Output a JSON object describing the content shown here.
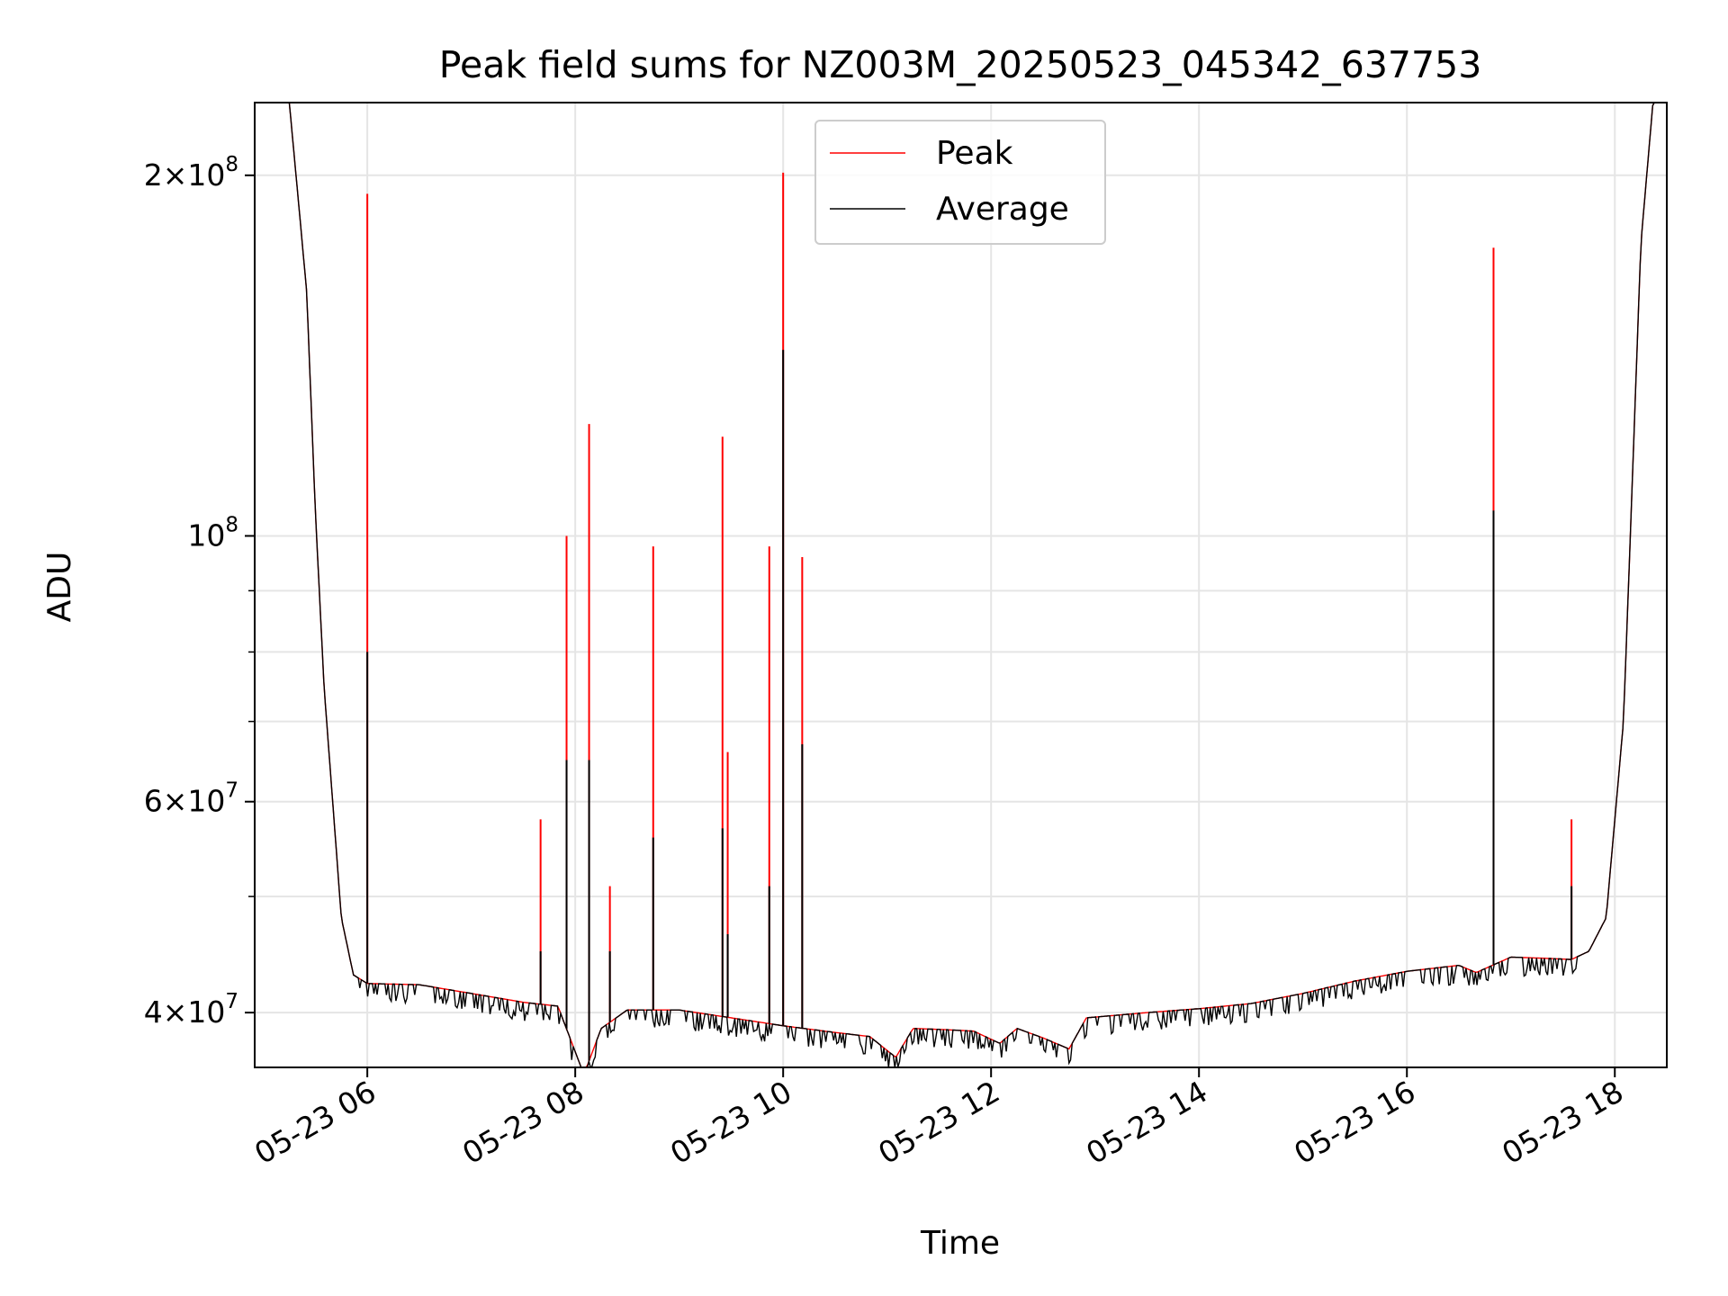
{
  "chart_data": {
    "type": "line",
    "title": "Peak field sums for NZ003M_20250523_045342_637753",
    "xlabel": "Time",
    "ylabel": "ADU",
    "y_scale": "log",
    "grid": true,
    "legend_position": "top-center",
    "xlim": [
      "05-23 04:55",
      "05-23 18:30"
    ],
    "ylim": [
      36000000,
      230000000
    ],
    "x_ticks": [
      "05-23 06",
      "05-23 08",
      "05-23 10",
      "05-23 12",
      "05-23 14",
      "05-23 16",
      "05-23 18"
    ],
    "y_ticks": [
      {
        "value": 40000000,
        "base": "4×10",
        "exp": "7"
      },
      {
        "value": 60000000,
        "base": "6×10",
        "exp": "7"
      },
      {
        "value": 100000000,
        "base": "10",
        "exp": "8"
      },
      {
        "value": 200000000,
        "base": "2×10",
        "exp": "8"
      }
    ],
    "y_minor_ticks": [
      50000000,
      70000000,
      80000000,
      90000000
    ],
    "baseline": {
      "x": [
        "05-23 04:55",
        "05-23 05:15",
        "05-23 05:25",
        "05-23 05:30",
        "05-23 05:35",
        "05-23 05:45",
        "05-23 05:52",
        "05-23 06:00",
        "05-23 06:30",
        "05-23 07:00",
        "05-23 07:30",
        "05-23 07:50",
        "05-23 08:05",
        "05-23 08:15",
        "05-23 08:30",
        "05-23 09:00",
        "05-23 09:30",
        "05-23 10:00",
        "05-23 10:30",
        "05-23 10:50",
        "05-23 11:05",
        "05-23 11:15",
        "05-23 11:35",
        "05-23 11:50",
        "05-23 12:05",
        "05-23 12:15",
        "05-23 12:30",
        "05-23 12:45",
        "05-23 12:55",
        "05-23 13:30",
        "05-23 14:00",
        "05-23 14:30",
        "05-23 15:00",
        "05-23 15:30",
        "05-23 16:00",
        "05-23 16:30",
        "05-23 16:40",
        "05-23 17:00",
        "05-23 17:20",
        "05-23 17:35",
        "05-23 17:45",
        "05-23 17:55",
        "05-23 18:05",
        "05-23 18:10",
        "05-23 18:15",
        "05-23 18:22",
        "05-23 18:30"
      ],
      "values": [
        230000000,
        230000000,
        160000000,
        105000000,
        75000000,
        48000000,
        43000000,
        42300000,
        42200000,
        41500000,
        40800000,
        40500000,
        35500000,
        38800000,
        40200000,
        40200000,
        39600000,
        39000000,
        38500000,
        38200000,
        36700000,
        38800000,
        38700000,
        38600000,
        37700000,
        38800000,
        38100000,
        37300000,
        39600000,
        40000000,
        40300000,
        40700000,
        41500000,
        42500000,
        43300000,
        43800000,
        43200000,
        44500000,
        44400000,
        44300000,
        45000000,
        48000000,
        70000000,
        110000000,
        175000000,
        230000000,
        230000000
      ]
    },
    "series": [
      {
        "name": "Peak",
        "color": "#ff0000",
        "spikes": [
          {
            "x": "05-23 06:00",
            "y": 193000000
          },
          {
            "x": "05-23 07:40",
            "y": 58000000
          },
          {
            "x": "05-23 07:55",
            "y": 100000000
          },
          {
            "x": "05-23 08:08",
            "y": 124000000
          },
          {
            "x": "05-23 08:20",
            "y": 51000000
          },
          {
            "x": "05-23 08:45",
            "y": 98000000
          },
          {
            "x": "05-23 09:25",
            "y": 121000000
          },
          {
            "x": "05-23 09:28",
            "y": 66000000
          },
          {
            "x": "05-23 09:52",
            "y": 98000000
          },
          {
            "x": "05-23 10:00",
            "y": 201000000
          },
          {
            "x": "05-23 10:11",
            "y": 96000000
          },
          {
            "x": "05-23 16:50",
            "y": 174000000
          },
          {
            "x": "05-23 17:35",
            "y": 58000000
          }
        ]
      },
      {
        "name": "Average",
        "color": "#000000",
        "spikes": [
          {
            "x": "05-23 06:00",
            "y": 80000000
          },
          {
            "x": "05-23 07:40",
            "y": 45000000
          },
          {
            "x": "05-23 07:55",
            "y": 65000000
          },
          {
            "x": "05-23 08:08",
            "y": 65000000
          },
          {
            "x": "05-23 08:20",
            "y": 45000000
          },
          {
            "x": "05-23 08:45",
            "y": 56000000
          },
          {
            "x": "05-23 09:25",
            "y": 57000000
          },
          {
            "x": "05-23 09:28",
            "y": 46500000
          },
          {
            "x": "05-23 09:52",
            "y": 51000000
          },
          {
            "x": "05-23 10:00",
            "y": 143000000
          },
          {
            "x": "05-23 10:11",
            "y": 67000000
          },
          {
            "x": "05-23 16:50",
            "y": 105000000
          },
          {
            "x": "05-23 17:35",
            "y": 51000000
          }
        ]
      }
    ]
  }
}
